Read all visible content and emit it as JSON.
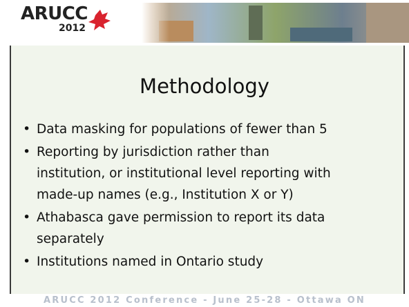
{
  "header": {
    "logo_text": "ARUCC",
    "logo_year": "2012"
  },
  "slide": {
    "title": "Methodology",
    "bullets": [
      [
        "Data masking for populations of fewer than 5"
      ],
      [
        "Reporting by jurisdiction rather than",
        "institution, or institutional level reporting with",
        "made-up names (e.g., Institution X or Y)"
      ],
      [
        "Athabasca gave permission to report its data",
        "separately"
      ],
      [
        "Institutions named in Ontario study"
      ]
    ]
  },
  "footer": {
    "text": "ARUCC 2012 Conference - June 25-28 - Ottawa ON"
  }
}
